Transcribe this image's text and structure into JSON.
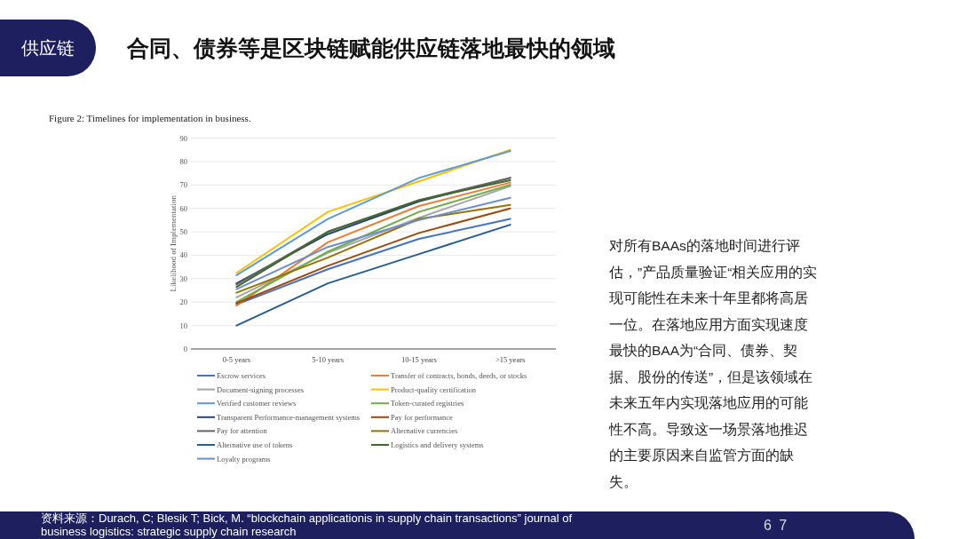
{
  "chart_data": {
    "type": "line",
    "title": "合同、债券等是区块链赋能供应链落地最快的领域",
    "subtitle": "Figure 2:  Timelines for implementation in business.",
    "ylabel": "Likelihood of Implementation",
    "categories": [
      "0-5 years",
      "5-10 years",
      "10-15 years",
      ">15 years"
    ],
    "ylim": [
      0,
      90
    ],
    "yticks": [
      0,
      10,
      20,
      30,
      40,
      50,
      60,
      70,
      80,
      90
    ],
    "grid": "y",
    "legend": "bottom",
    "marker": "none",
    "line_style": "solid",
    "series": [
      {
        "name": "Escrow services",
        "color": "#4472c4",
        "values": [
          19,
          34,
          47,
          55.5
        ]
      },
      {
        "name": "Transfer of contracts, bonds, deeds, or stocks",
        "color": "#ed7d31",
        "values": [
          18.5,
          45.5,
          61,
          71
        ]
      },
      {
        "name": "Document-signing processes",
        "color": "#a5a5a5",
        "values": [
          22,
          41,
          56,
          69.5
        ]
      },
      {
        "name": "Product-quality certification",
        "color": "#ffc000",
        "values": [
          32.5,
          58.5,
          71.5,
          85
        ]
      },
      {
        "name": "Verified customer reviews",
        "color": "#5b9bd5",
        "values": [
          31.5,
          55.5,
          73,
          84.5
        ]
      },
      {
        "name": "Token-curated registries",
        "color": "#70ad47",
        "values": [
          20,
          41.5,
          58.5,
          70
        ]
      },
      {
        "name": "Transparent Performance-management systems",
        "color": "#264478",
        "values": [
          28,
          49,
          63,
          73
        ]
      },
      {
        "name": "Pay for performance",
        "color": "#9e480e",
        "values": [
          19.5,
          35.5,
          49.5,
          60
        ]
      },
      {
        "name": "Pay for attention",
        "color": "#636363",
        "values": [
          27.5,
          50,
          63.5,
          73
        ]
      },
      {
        "name": "Alternative currencies",
        "color": "#997300",
        "values": [
          24,
          39,
          55.5,
          61.5
        ]
      },
      {
        "name": "Alternative use of tokens",
        "color": "#255e91",
        "values": [
          10,
          28,
          40.5,
          53
        ]
      },
      {
        "name": "Logistics and delivery systems",
        "color": "#43682b",
        "values": [
          26.5,
          50,
          63.5,
          72
        ]
      },
      {
        "name": "Loyalty programs",
        "color": "#698ed0",
        "values": [
          25.5,
          43.5,
          55,
          64.5
        ]
      }
    ],
    "annotations": [
      "供应链",
      "对所有BAAs的落地时间进行评估，”产品质量验证“相关应用的实现可能性在未来十年里都将高居一位。在落地应用方面实现速度最快的BAA为“合同、债券、契据、股份的传送”，但是该领域在未来五年内实现落地应用的可能性不高。导致这一场景落地推迟的主要原因来自监管方面的缺失。",
      "资料来源：Durach, C; Blesik T; Bick, M. “blockchain applicationis in supply chain transactions” journal of business logistics: strategic supply chain research",
      "6 7"
    ]
  }
}
